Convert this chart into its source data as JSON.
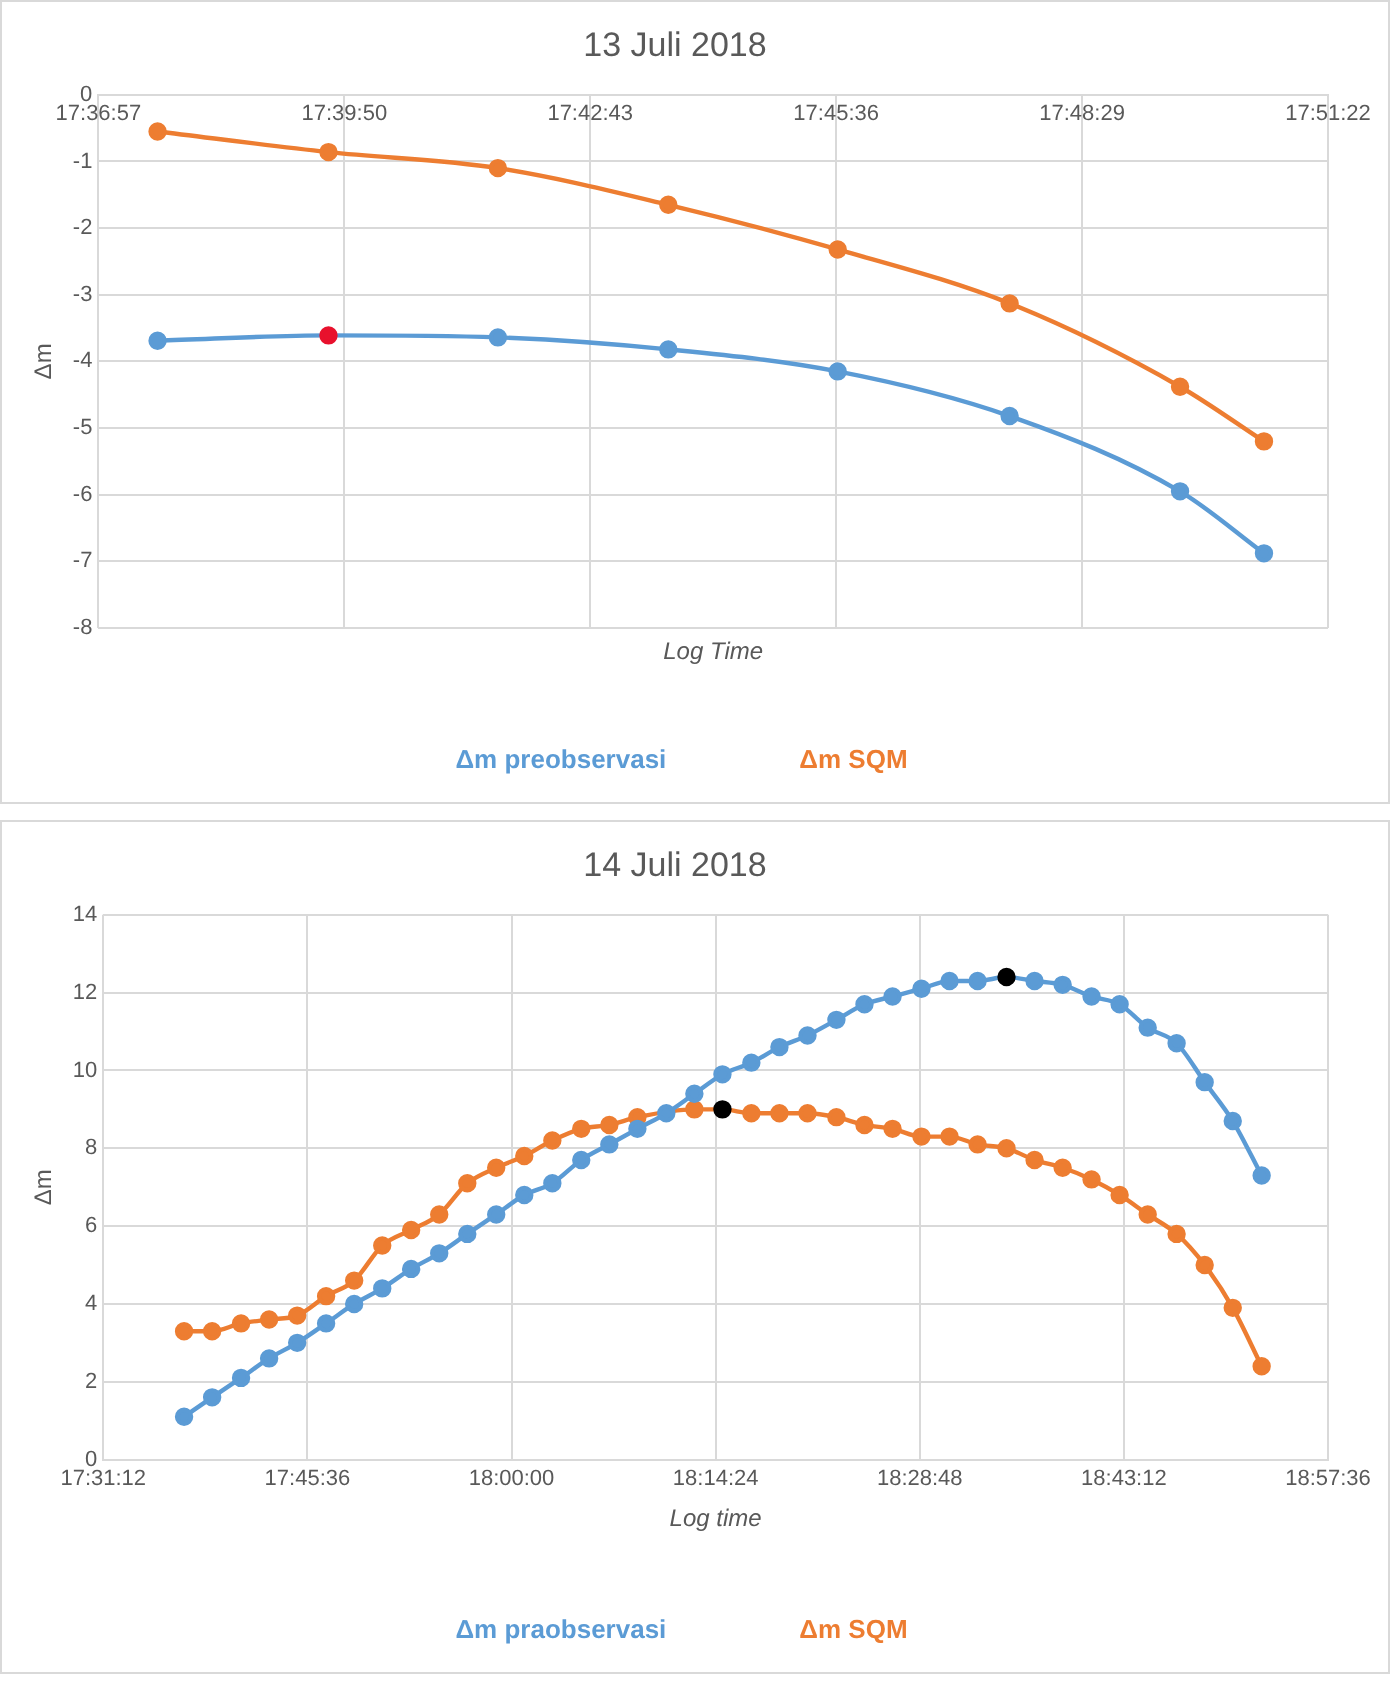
{
  "chart_data": [
    {
      "type": "line",
      "title": "13 Juli 2018",
      "xlabel": "Log Time",
      "ylabel": "Δm",
      "x": [
        17.6274,
        17.6608,
        17.6939,
        17.7272,
        17.7603,
        17.7939,
        17.8272,
        17.8436
      ],
      "series": [
        {
          "name": "Δm preobservasi",
          "color": "#5b9bd5",
          "colors": [
            "#5b9bd5",
            "#e8112d",
            "#5b9bd5",
            "#5b9bd5",
            "#5b9bd5",
            "#5b9bd5",
            "#5b9bd5",
            "#5b9bd5"
          ],
          "values": [
            -3.69,
            -3.61,
            -3.64,
            -3.82,
            -4.15,
            -4.82,
            -5.95,
            -6.88
          ]
        },
        {
          "name": "Δm SQM",
          "color": "#ed7d31",
          "values": [
            -0.55,
            -0.86,
            -1.1,
            -1.65,
            -2.32,
            -3.13,
            -4.38,
            -5.2
          ]
        }
      ],
      "xlim": [
        17.615833,
        17.856111
      ],
      "xticks": [
        {
          "value": 17.615833,
          "label": "17:36:57"
        },
        {
          "value": 17.663889,
          "label": "17:39:50"
        },
        {
          "value": 17.711944,
          "label": "17:42:43"
        },
        {
          "value": 17.76,
          "label": "17:45:36"
        },
        {
          "value": 17.808056,
          "label": "17:48:29"
        },
        {
          "value": 17.856111,
          "label": "17:51:22"
        }
      ],
      "ylim": [
        -8,
        0
      ],
      "yticks": [
        0,
        -1,
        -2,
        -3,
        -4,
        -5,
        -6,
        -7,
        -8
      ],
      "grid": true,
      "legend": "bottom",
      "marker": "circle",
      "line_style": "solid"
    },
    {
      "type": "line",
      "title": "14 Juli 2018",
      "xlabel": "Log time",
      "ylabel": "Δm",
      "x": [
        17.615,
        17.648,
        17.682,
        17.715,
        17.748,
        17.782,
        17.815,
        17.848,
        17.882,
        17.915,
        17.948,
        17.982,
        18.015,
        18.048,
        18.082,
        18.115,
        18.148,
        18.182,
        18.215,
        18.248,
        18.282,
        18.315,
        18.348,
        18.382,
        18.415,
        18.448,
        18.482,
        18.515,
        18.548,
        18.582,
        18.615,
        18.648,
        18.682,
        18.715,
        18.748,
        18.782,
        18.815,
        18.848,
        18.882
      ],
      "series": [
        {
          "name": "Δm praobservasi",
          "color": "#5b9bd5",
          "colors": [
            "#5b9bd5",
            "#5b9bd5",
            "#5b9bd5",
            "#5b9bd5",
            "#5b9bd5",
            "#5b9bd5",
            "#5b9bd5",
            "#5b9bd5",
            "#5b9bd5",
            "#5b9bd5",
            "#5b9bd5",
            "#5b9bd5",
            "#5b9bd5",
            "#5b9bd5",
            "#5b9bd5",
            "#5b9bd5",
            "#5b9bd5",
            "#5b9bd5",
            "#5b9bd5",
            "#5b9bd5",
            "#5b9bd5",
            "#5b9bd5",
            "#5b9bd5",
            "#5b9bd5",
            "#5b9bd5",
            "#5b9bd5",
            "#5b9bd5",
            "#5b9bd5",
            "#5b9bd5",
            "#000000",
            "#5b9bd5",
            "#5b9bd5",
            "#5b9bd5",
            "#5b9bd5",
            "#5b9bd5",
            "#5b9bd5",
            "#5b9bd5",
            "#5b9bd5",
            "#5b9bd5"
          ],
          "values": [
            1.1,
            1.6,
            2.1,
            2.6,
            3.0,
            3.5,
            4.0,
            4.4,
            4.9,
            5.3,
            5.8,
            6.3,
            6.8,
            7.1,
            7.7,
            8.1,
            8.5,
            8.9,
            9.4,
            9.9,
            10.2,
            10.6,
            10.9,
            11.3,
            11.7,
            11.9,
            12.1,
            12.3,
            12.3,
            12.4,
            12.3,
            12.2,
            11.9,
            11.7,
            11.1,
            10.7,
            9.7,
            8.7,
            7.3
          ]
        },
        {
          "name": "Δm SQM",
          "color": "#ed7d31",
          "colors": [
            "#ed7d31",
            "#ed7d31",
            "#ed7d31",
            "#ed7d31",
            "#ed7d31",
            "#ed7d31",
            "#ed7d31",
            "#ed7d31",
            "#ed7d31",
            "#ed7d31",
            "#ed7d31",
            "#ed7d31",
            "#ed7d31",
            "#ed7d31",
            "#ed7d31",
            "#ed7d31",
            "#ed7d31",
            "#ed7d31",
            "#ed7d31",
            "#000000",
            "#ed7d31",
            "#ed7d31",
            "#ed7d31",
            "#ed7d31",
            "#ed7d31",
            "#ed7d31",
            "#ed7d31",
            "#ed7d31",
            "#ed7d31",
            "#ed7d31",
            "#ed7d31",
            "#ed7d31",
            "#ed7d31",
            "#ed7d31",
            "#ed7d31",
            "#ed7d31",
            "#ed7d31",
            "#ed7d31",
            "#ed7d31"
          ],
          "values": [
            3.3,
            3.3,
            3.5,
            3.6,
            3.7,
            4.2,
            4.6,
            5.5,
            5.9,
            6.3,
            7.1,
            7.5,
            7.8,
            8.2,
            8.5,
            8.6,
            8.8,
            null,
            9.0,
            9.0,
            8.9,
            8.9,
            8.9,
            8.8,
            8.6,
            8.5,
            8.3,
            8.3,
            8.1,
            8.0,
            7.7,
            7.5,
            7.2,
            6.8,
            6.3,
            5.8,
            5.0,
            3.9,
            2.4
          ]
        }
      ],
      "xlim": [
        17.52,
        18.96
      ],
      "xticks": [
        {
          "value": 17.52,
          "label": "17:31:12"
        },
        {
          "value": 17.76,
          "label": "17:45:36"
        },
        {
          "value": 18.0,
          "label": "18:00:00"
        },
        {
          "value": 18.24,
          "label": "18:14:24"
        },
        {
          "value": 18.48,
          "label": "18:28:48"
        },
        {
          "value": 18.72,
          "label": "18:43:12"
        },
        {
          "value": 18.96,
          "label": "18:57:36"
        }
      ],
      "ylim": [
        0,
        14
      ],
      "yticks": [
        0,
        2,
        4,
        6,
        8,
        10,
        12,
        14
      ],
      "grid": true,
      "legend": "bottom",
      "marker": "circle",
      "line_style": "solid"
    }
  ]
}
